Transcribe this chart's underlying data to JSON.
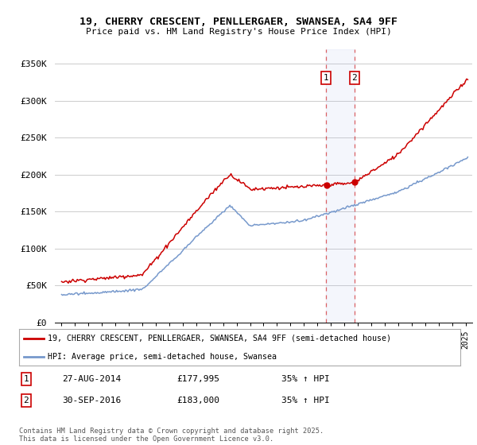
{
  "title_line1": "19, CHERRY CRESCENT, PENLLERGAER, SWANSEA, SA4 9FF",
  "title_line2": "Price paid vs. HM Land Registry's House Price Index (HPI)",
  "background_color": "#ffffff",
  "plot_bg_color": "#ffffff",
  "grid_color": "#cccccc",
  "red_color": "#cc0000",
  "blue_color": "#7799cc",
  "legend_label_red": "19, CHERRY CRESCENT, PENLLERGAER, SWANSEA, SA4 9FF (semi-detached house)",
  "legend_label_blue": "HPI: Average price, semi-detached house, Swansea",
  "marker1_date": "27-AUG-2014",
  "marker1_price": "£177,995",
  "marker1_hpi": "35% ↑ HPI",
  "marker2_date": "30-SEP-2016",
  "marker2_price": "£183,000",
  "marker2_hpi": "35% ↑ HPI",
  "footer": "Contains HM Land Registry data © Crown copyright and database right 2025.\nThis data is licensed under the Open Government Licence v3.0.",
  "ylim_min": 0,
  "ylim_max": 370000,
  "yticks": [
    0,
    50000,
    100000,
    150000,
    200000,
    250000,
    300000,
    350000
  ],
  "ytick_labels": [
    "£0",
    "£50K",
    "£100K",
    "£150K",
    "£200K",
    "£250K",
    "£300K",
    "£350K"
  ],
  "marker1_x": 2014.65,
  "marker2_x": 2016.75,
  "marker1_y": 177995,
  "marker2_y": 183000,
  "xlim_min": 1994.5,
  "xlim_max": 2025.5
}
